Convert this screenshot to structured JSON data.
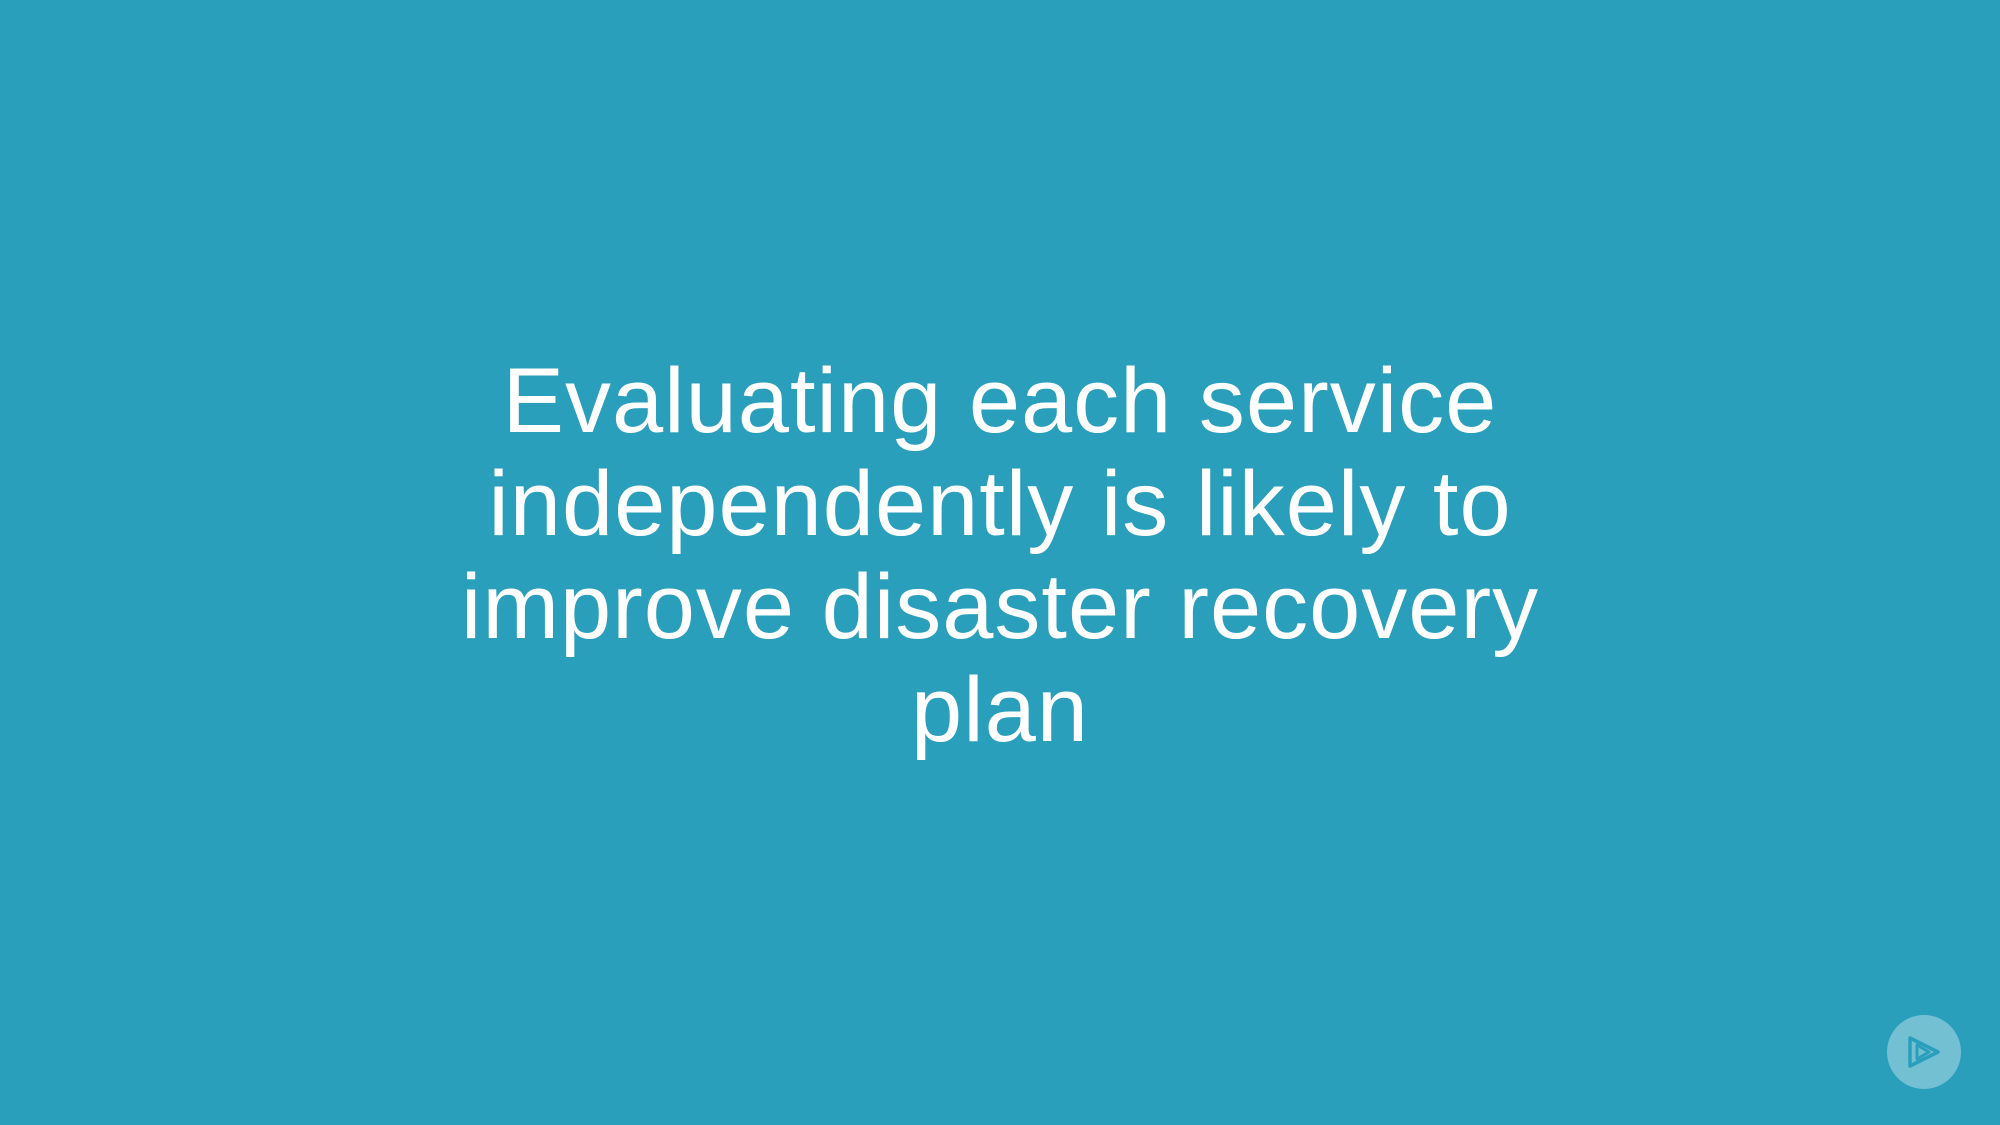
{
  "slide": {
    "background_color": "#2a9fbc",
    "text_color": "#ffffff",
    "headline_lines": [
      "Evaluating each service",
      "independently is likely to",
      "improve disaster recovery",
      "plan"
    ]
  },
  "logo": {
    "icon": "play-logo-icon"
  }
}
